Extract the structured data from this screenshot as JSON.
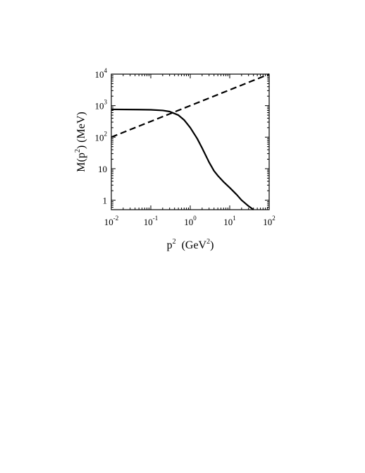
{
  "chart_data": {
    "type": "line",
    "xlabel": {
      "base": "p",
      "sup": "2",
      "rest": "  (GeV",
      "sup2": "2",
      "end": ")"
    },
    "ylabel": {
      "pre": "M(p",
      "sup": "2",
      "rest": ") (MeV)"
    },
    "x_scale": "log",
    "y_scale": "log",
    "xlim": [
      0.01,
      100
    ],
    "ylim": [
      0.5,
      10000
    ],
    "grid": false,
    "x_ticks": [
      {
        "value": 0.01,
        "base": "10",
        "exp": "-2"
      },
      {
        "value": 0.1,
        "base": "10",
        "exp": "-1"
      },
      {
        "value": 1,
        "base": "10",
        "exp": "0"
      },
      {
        "value": 10,
        "base": "10",
        "exp": "1"
      },
      {
        "value": 100,
        "base": "10",
        "exp": "2"
      }
    ],
    "y_ticks": [
      {
        "value": 1,
        "base": "1",
        "exp": ""
      },
      {
        "value": 10,
        "base": "10",
        "exp": ""
      },
      {
        "value": 100,
        "base": "10",
        "exp": "2"
      },
      {
        "value": 1000,
        "base": "10",
        "exp": "3"
      },
      {
        "value": 10000,
        "base": "10",
        "exp": "4"
      }
    ],
    "series": [
      {
        "style": "solid",
        "x": [
          0.01,
          0.05,
          0.1,
          0.2,
          0.3,
          0.5,
          0.7,
          1.0,
          1.5,
          2.0,
          3.0,
          4.0,
          5.0,
          7.0,
          10.0,
          15.0,
          20.0,
          30.0,
          40.0
        ],
        "y": [
          760,
          750,
          740,
          705,
          650,
          500,
          350,
          200,
          90,
          45,
          16,
          8.5,
          6,
          3.8,
          2.5,
          1.5,
          1.0,
          0.65,
          0.5
        ]
      },
      {
        "style": "dashed",
        "x": [
          0.01,
          100
        ],
        "y": [
          100,
          10000
        ]
      }
    ]
  }
}
